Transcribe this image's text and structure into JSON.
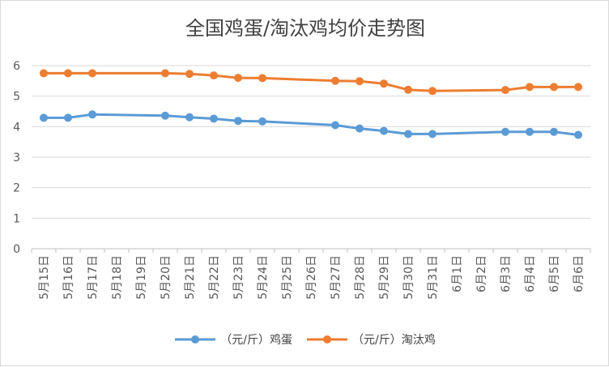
{
  "chart_data": {
    "type": "line",
    "title": "全国鸡蛋/淘汰鸡均价走势图",
    "xlabel": "",
    "ylabel": "",
    "ylim": [
      0,
      6
    ],
    "yticks": [
      0,
      1,
      2,
      3,
      4,
      5,
      6
    ],
    "grid": true,
    "legend": "bottom",
    "categories": [
      "5月15日",
      "5月16日",
      "5月17日",
      "5月18日",
      "5月19日",
      "5月20日",
      "5月21日",
      "5月22日",
      "5月23日",
      "5月24日",
      "5月25日",
      "5月26日",
      "5月27日",
      "5月28日",
      "5月29日",
      "5月30日",
      "5月31日",
      "6月1日",
      "6月2日",
      "6月3日",
      "6月4日",
      "6月5日",
      "6月6日"
    ],
    "series": [
      {
        "name": "（元/斤）鸡蛋",
        "color": "#5b9bd5",
        "values": [
          4.29,
          4.29,
          4.4,
          null,
          null,
          4.36,
          4.31,
          4.26,
          4.19,
          4.17,
          null,
          null,
          4.05,
          3.94,
          3.86,
          3.76,
          3.76,
          null,
          null,
          3.83,
          3.83,
          3.83,
          3.73
        ]
      },
      {
        "name": "（元/斤）淘汰鸡",
        "color": "#ed7d31",
        "values": [
          5.75,
          5.75,
          5.75,
          null,
          null,
          5.75,
          5.73,
          5.68,
          5.6,
          5.59,
          null,
          null,
          5.5,
          5.49,
          5.41,
          5.21,
          5.17,
          null,
          null,
          5.2,
          5.3,
          5.3,
          5.3
        ]
      }
    ]
  }
}
